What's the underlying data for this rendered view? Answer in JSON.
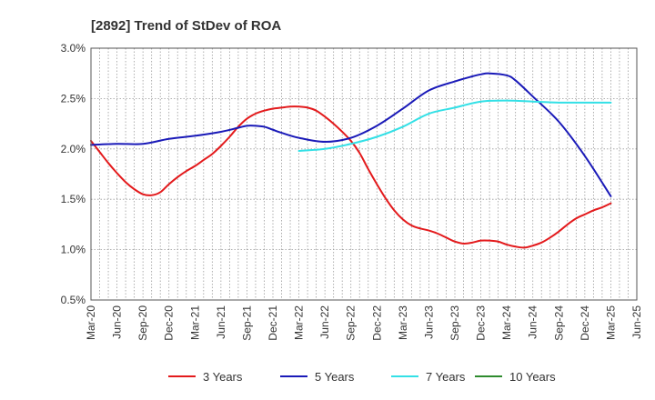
{
  "chart_data": {
    "type": "line",
    "title": "[2892]  Trend of StDev of ROA",
    "xlabel": "",
    "ylabel": "",
    "ylim": [
      0.5,
      3.0
    ],
    "y_ticks": [
      "0.5%",
      "1.0%",
      "1.5%",
      "2.0%",
      "2.5%",
      "3.0%"
    ],
    "x_ticks": [
      "Mar-20",
      "Jun-20",
      "Sep-20",
      "Dec-20",
      "Mar-21",
      "Jun-21",
      "Sep-21",
      "Dec-21",
      "Mar-22",
      "Jun-22",
      "Sep-22",
      "Dec-22",
      "Mar-23",
      "Jun-23",
      "Sep-23",
      "Dec-23",
      "Mar-24",
      "Jun-24",
      "Sep-24",
      "Dec-24",
      "Mar-25",
      "Jun-25"
    ],
    "grid": true,
    "legend_position": "bottom",
    "series": [
      {
        "name": "3 Years",
        "color": "#e31a1c",
        "x": [
          "Mar-20",
          "Apr-20",
          "May-20",
          "Jun-20",
          "Jul-20",
          "Aug-20",
          "Sep-20",
          "Oct-20",
          "Nov-20",
          "Dec-20",
          "Jan-21",
          "Feb-21",
          "Mar-21",
          "Apr-21",
          "May-21",
          "Jun-21",
          "Jul-21",
          "Aug-21",
          "Sep-21",
          "Oct-21",
          "Nov-21",
          "Dec-21",
          "Jan-22",
          "Feb-22",
          "Mar-22",
          "Apr-22",
          "May-22",
          "Jun-22",
          "Jul-22",
          "Aug-22",
          "Sep-22",
          "Oct-22",
          "Nov-22",
          "Dec-22",
          "Jan-23",
          "Feb-23",
          "Mar-23",
          "Apr-23",
          "May-23",
          "Jun-23",
          "Jul-23",
          "Aug-23",
          "Sep-23",
          "Oct-23",
          "Nov-23",
          "Dec-23",
          "Jan-24",
          "Feb-24",
          "Mar-24",
          "Apr-24",
          "May-24",
          "Jun-24",
          "Jul-24",
          "Aug-24",
          "Sep-24",
          "Oct-24",
          "Nov-24",
          "Dec-24",
          "Jan-25",
          "Feb-25",
          "Mar-25"
        ],
        "values": [
          2.08,
          1.97,
          1.86,
          1.76,
          1.67,
          1.6,
          1.55,
          1.54,
          1.57,
          1.65,
          1.72,
          1.78,
          1.83,
          1.89,
          1.95,
          2.03,
          2.12,
          2.22,
          2.3,
          2.35,
          2.38,
          2.4,
          2.41,
          2.42,
          2.42,
          2.41,
          2.38,
          2.32,
          2.25,
          2.17,
          2.08,
          1.96,
          1.8,
          1.65,
          1.51,
          1.39,
          1.3,
          1.24,
          1.21,
          1.19,
          1.16,
          1.12,
          1.08,
          1.06,
          1.07,
          1.09,
          1.09,
          1.08,
          1.05,
          1.03,
          1.02,
          1.04,
          1.07,
          1.12,
          1.18,
          1.25,
          1.31,
          1.35,
          1.39,
          1.42,
          1.46
        ]
      },
      {
        "name": "5 Years",
        "color": "#1a1ab8",
        "x": [
          "Mar-20",
          "Jun-20",
          "Sep-20",
          "Dec-20",
          "Mar-21",
          "Jun-21",
          "Aug-21",
          "Sep-21",
          "Oct-21",
          "Nov-21",
          "Dec-21",
          "Jan-22",
          "Mar-22",
          "Jun-22",
          "Sep-22",
          "Dec-22",
          "Mar-23",
          "Jun-23",
          "Sep-23",
          "Nov-23",
          "Dec-23",
          "Jan-24",
          "Mar-24",
          "Apr-24",
          "Jun-24",
          "Sep-24",
          "Dec-24",
          "Mar-25"
        ],
        "values": [
          2.04,
          2.05,
          2.05,
          2.1,
          2.13,
          2.17,
          2.21,
          2.23,
          2.23,
          2.22,
          2.19,
          2.16,
          2.11,
          2.07,
          2.11,
          2.23,
          2.4,
          2.58,
          2.67,
          2.72,
          2.74,
          2.75,
          2.73,
          2.68,
          2.52,
          2.27,
          1.93,
          1.53
        ]
      },
      {
        "name": "7 Years",
        "color": "#33e0e6",
        "x": [
          "Mar-22",
          "Jun-22",
          "Sep-22",
          "Dec-22",
          "Mar-23",
          "Jun-23",
          "Sep-23",
          "Dec-23",
          "Mar-24",
          "Jun-24",
          "Sep-24",
          "Dec-24",
          "Mar-25"
        ],
        "values": [
          1.98,
          2.0,
          2.05,
          2.12,
          2.22,
          2.35,
          2.41,
          2.47,
          2.48,
          2.47,
          2.46,
          2.46,
          2.46
        ]
      },
      {
        "name": "10 Years",
        "color": "#2e8b2e",
        "x": [],
        "values": []
      }
    ]
  }
}
